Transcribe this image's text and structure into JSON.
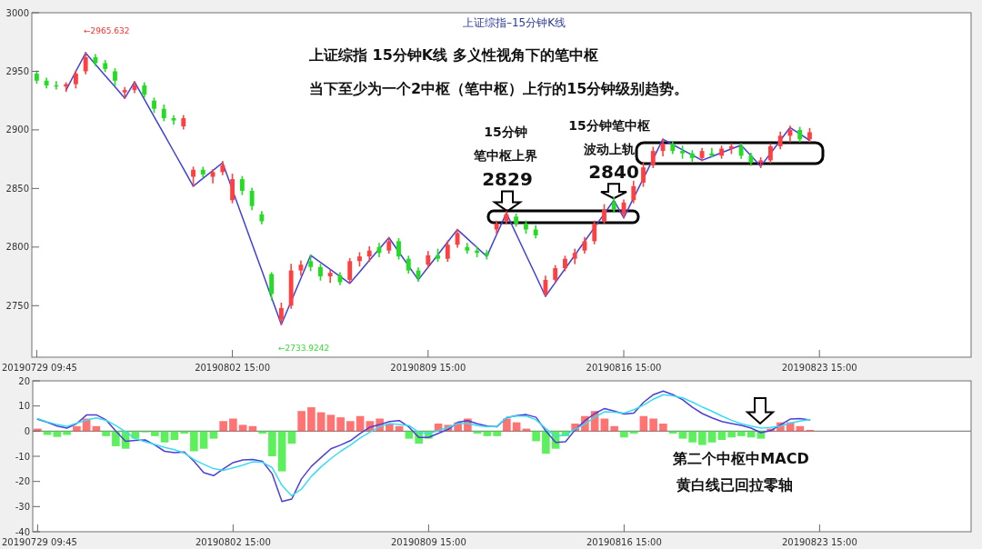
{
  "chart_data": [
    {
      "type": "candlestick",
      "title": "上证综指–15分钟K线",
      "categories": [
        "20190729 09:45",
        null,
        null,
        null,
        null,
        null,
        null,
        null,
        null,
        null,
        null,
        null,
        null,
        null,
        null,
        null,
        null,
        null,
        null,
        null,
        "20190802 15:00",
        null,
        null,
        null,
        null,
        null,
        null,
        null,
        null,
        null,
        null,
        null,
        null,
        null,
        null,
        null,
        null,
        null,
        null,
        null,
        "20190809 15:00",
        null,
        null,
        null,
        null,
        null,
        null,
        null,
        null,
        null,
        null,
        null,
        null,
        null,
        null,
        null,
        null,
        null,
        null,
        null,
        "20190816 15:00",
        null,
        null,
        null,
        null,
        null,
        null,
        null,
        null,
        null,
        null,
        null,
        null,
        null,
        null,
        null,
        null,
        null,
        null,
        null,
        "20190823 15:00",
        null,
        null,
        null,
        null,
        null,
        null,
        null,
        null,
        null,
        null,
        null,
        null,
        null,
        null,
        null
      ],
      "ylim": [
        2706,
        3000
      ],
      "yticks": [
        2750,
        2800,
        2850,
        2900,
        2950,
        3000
      ],
      "grid": false,
      "series": [
        {
          "type": "line",
          "color": "#4040d8",
          "values": [
            null,
            null,
            null,
            2934,
            2950,
            2965.632,
            2956,
            2946.3,
            2936.7,
            2927,
            2941,
            2926.2,
            2911.3,
            2896.5,
            2881.7,
            2866.8,
            2852,
            2858.7,
            2865.3,
            2872,
            null,
            2826,
            2803,
            2780,
            2757,
            2733.9242,
            null,
            2773.3,
            2793,
            2787,
            2781,
            2775,
            2769,
            2778.8,
            2788.5,
            2798.3,
            2808,
            2796,
            2784,
            2772,
            2782.8,
            2793.5,
            2804.3,
            2815,
            2807.3,
            2799.7,
            2792,
            2810.5,
            2829,
            2811.3,
            2793.5,
            2775.8,
            2758,
            2769.7,
            2781.4,
            2793.1,
            2804.9,
            2816.6,
            2828.3,
            2840,
            2825,
            2841.8,
            null,
            2875.3,
            2892,
            2887.5,
            2883,
            2878.5,
            2874,
            2877.3,
            2880.5,
            2883.8,
            2887,
            2878,
            2869,
            2880,
            2891,
            2902,
            2896.5,
            2891,
            null,
            null,
            null,
            null,
            null,
            null,
            null,
            null,
            null,
            null,
            null,
            null,
            null,
            null,
            null,
            null
          ]
        },
        {
          "color": "#ff4040",
          "ohlc": [
            null,
            null,
            null,
            [
              2937,
              2940,
              2933,
              2939
            ],
            [
              2939,
              2950,
              2936,
              2948
            ],
            [
              2950,
              2966,
              2948,
              2962
            ],
            null,
            null,
            null,
            [
              2932,
              2936,
              2927,
              2934
            ],
            [
              2934,
              2941,
              2932,
              2938
            ],
            null,
            null,
            null,
            null,
            [
              2903,
              2912,
              2901,
              2910
            ],
            [
              2860,
              2868,
              2852,
              2866
            ],
            null,
            [
              2860,
              2866,
              2855,
              2864
            ],
            [
              2864,
              2873,
              2862,
              2870
            ],
            [
              2840,
              2862,
              2838,
              2858
            ],
            null,
            null,
            null,
            null,
            [
              2738,
              2752,
              2734,
              2748
            ],
            [
              2750,
              2785,
              2748,
              2780
            ],
            [
              2780,
              2788,
              2776,
              2785
            ],
            null,
            null,
            [
              2775,
              2780,
              2770,
              2778
            ],
            null,
            [
              2772,
              2790,
              2770,
              2788
            ],
            [
              2788,
              2795,
              2784,
              2792
            ],
            [
              2792,
              2800,
              2788,
              2797
            ],
            null,
            [
              2797,
              2808,
              2795,
              2805
            ],
            null,
            null,
            null,
            [
              2785,
              2796,
              2783,
              2793
            ],
            null,
            [
              2790,
              2805,
              2788,
              2802
            ],
            [
              2802,
              2815,
              2800,
              2812
            ],
            null,
            null,
            null,
            [
              2815,
              2822,
              2812,
              2820
            ],
            [
              2822,
              2830,
              2820,
              2828
            ],
            null,
            null,
            null,
            [
              2760,
              2775,
              2758,
              2772
            ],
            [
              2772,
              2784,
              2770,
              2782
            ],
            [
              2782,
              2792,
              2780,
              2790
            ],
            [
              2790,
              2798,
              2786,
              2795
            ],
            [
              2797,
              2808,
              2795,
              2805
            ],
            [
              2805,
              2822,
              2803,
              2820
            ],
            [
              2822,
              2836,
              2820,
              2832
            ],
            null,
            [
              2828,
              2840,
              2825,
              2838
            ],
            [
              2840,
              2856,
              2838,
              2852
            ],
            [
              2855,
              2872,
              2852,
              2868
            ],
            [
              2870,
              2885,
              2868,
              2882
            ],
            [
              2882,
              2892,
              2878,
              2888
            ],
            null,
            null,
            null,
            [
              2876,
              2884,
              2874,
              2882
            ],
            null,
            [
              2878,
              2886,
              2876,
              2884
            ],
            [
              2884,
              2888,
              2880,
              2886
            ],
            null,
            null,
            [
              2872,
              2876,
              2868,
              2874
            ],
            [
              2874,
              2888,
              2872,
              2886
            ],
            [
              2886,
              2898,
              2884,
              2895
            ],
            [
              2895,
              2903,
              2890,
              2900
            ],
            null,
            [
              2892,
              2901,
              2890,
              2898
            ],
            null,
            null,
            null,
            null,
            null,
            null,
            null,
            null,
            null,
            null,
            null,
            null,
            null,
            null,
            null,
            null
          ]
        },
        {
          "color": "#22dd22",
          "ohlc": [
            [
              2948,
              2950,
              2940,
              2942
            ],
            [
              2942,
              2944,
              2936,
              2938
            ],
            [
              2938,
              2941,
              2935,
              2937
            ],
            null,
            null,
            null,
            [
              2962,
              2964,
              2955,
              2957
            ],
            [
              2957,
              2959,
              2950,
              2952
            ],
            [
              2950,
              2952,
              2938,
              2942
            ],
            null,
            null,
            [
              2938,
              2940,
              2928,
              2930
            ],
            [
              2925,
              2927,
              2915,
              2918
            ],
            [
              2918,
              2921,
              2908,
              2910
            ],
            [
              2910,
              2912,
              2905,
              2908
            ],
            null,
            null,
            [
              2866,
              2868,
              2860,
              2862
            ],
            null,
            null,
            null,
            [
              2858,
              2860,
              2845,
              2848
            ],
            [
              2848,
              2850,
              2832,
              2835
            ],
            [
              2828,
              2830,
              2820,
              2822
            ],
            [
              2777,
              2778,
              2755,
              2760
            ],
            null,
            null,
            null,
            [
              2788,
              2793,
              2780,
              2783
            ],
            [
              2783,
              2785,
              2772,
              2775
            ],
            null,
            [
              2776,
              2778,
              2768,
              2770
            ],
            null,
            null,
            null,
            [
              2800,
              2803,
              2792,
              2795
            ],
            null,
            [
              2805,
              2807,
              2790,
              2792
            ],
            [
              2790,
              2792,
              2778,
              2780
            ],
            [
              2780,
              2782,
              2771,
              2774
            ],
            null,
            [
              2793,
              2798,
              2788,
              2790
            ],
            null,
            null,
            [
              2800,
              2803,
              2795,
              2797
            ],
            [
              2797,
              2800,
              2792,
              2795
            ],
            [
              2795,
              2797,
              2790,
              2793
            ],
            null,
            null,
            [
              2826,
              2828,
              2818,
              2820
            ],
            [
              2820,
              2822,
              2812,
              2815
            ],
            [
              2815,
              2818,
              2808,
              2810
            ],
            null,
            null,
            null,
            null,
            null,
            null,
            null,
            [
              2838,
              2842,
              2830,
              2832
            ],
            null,
            null,
            null,
            null,
            null,
            [
              2888,
              2890,
              2880,
              2882
            ],
            [
              2882,
              2886,
              2876,
              2880
            ],
            [
              2880,
              2882,
              2873,
              2876
            ],
            null,
            [
              2880,
              2884,
              2877,
              2878
            ],
            null,
            null,
            [
              2886,
              2888,
              2876,
              2878
            ],
            [
              2878,
              2880,
              2870,
              2872
            ],
            null,
            null,
            null,
            null,
            [
              2900,
              2902,
              2890,
              2892
            ],
            null,
            null,
            null,
            null,
            null,
            null,
            null,
            null,
            null,
            null,
            null,
            null,
            null,
            null,
            null,
            null,
            null
          ]
        }
      ],
      "annotations": [
        "上证综指    15分钟K线     多义性视角下的笔中枢",
        "当下至少为一个2中枢（笔中枢）上行的15分钟级别趋势。",
        "15分钟",
        "笔中枢上界",
        {
          "text": "2829",
          "y": 2829
        },
        "15分钟笔中枢",
        "波动上轨",
        {
          "text": "2840",
          "y": 2840
        },
        "←2965.632",
        "←2733.9242"
      ]
    },
    {
      "type": "bar",
      "categories": [
        "20190729 09:45",
        null,
        null,
        null,
        null,
        null,
        null,
        null,
        null,
        null,
        null,
        null,
        null,
        null,
        null,
        null,
        null,
        null,
        null,
        null,
        "20190802 15:00",
        null,
        null,
        null,
        null,
        null,
        null,
        null,
        null,
        null,
        null,
        null,
        null,
        null,
        null,
        null,
        null,
        null,
        null,
        null,
        "20190809 15:00",
        null,
        null,
        null,
        null,
        null,
        null,
        null,
        null,
        null,
        null,
        null,
        null,
        null,
        null,
        null,
        null,
        null,
        null,
        null,
        "20190816 15:00",
        null,
        null,
        null,
        null,
        null,
        null,
        null,
        null,
        null,
        null,
        null,
        null,
        null,
        null,
        null,
        null,
        null,
        null,
        null,
        "20190823 15:00",
        null,
        null,
        null,
        null,
        null,
        null,
        null,
        null,
        null,
        null,
        null,
        null,
        null,
        null,
        null
      ],
      "ylim": [
        -40,
        20
      ],
      "yticks": [
        -40,
        -30,
        -20,
        -10,
        0,
        10,
        20
      ],
      "grid": false,
      "ref_lines": [
        {
          "axis": "y",
          "value": 0,
          "color": "#888888"
        }
      ],
      "series": [
        {
          "color": "#ff5050",
          "values": [
            1,
            null,
            null,
            null,
            2,
            5,
            2,
            null,
            null,
            null,
            null,
            null,
            null,
            null,
            null,
            null,
            null,
            null,
            null,
            4,
            5,
            2.5,
            2,
            null,
            null,
            null,
            null,
            8,
            9.5,
            7.5,
            6.5,
            5.5,
            4,
            6,
            4,
            5,
            3,
            2,
            null,
            null,
            null,
            3,
            2.5,
            3.5,
            5,
            null,
            null,
            null,
            5,
            3.5,
            1,
            null,
            null,
            null,
            null,
            3,
            6,
            8,
            5,
            2,
            null,
            null,
            6,
            5,
            3,
            null,
            null,
            null,
            null,
            null,
            null,
            null,
            null,
            null,
            null,
            1,
            3.5,
            3.5,
            2,
            0.5,
            null,
            null,
            null,
            null,
            null,
            null,
            null,
            null,
            null,
            null,
            null,
            null,
            null,
            null,
            null,
            null
          ]
        },
        {
          "color": "#33ee33",
          "values": [
            null,
            -1.5,
            -2.3,
            -1.5,
            null,
            null,
            null,
            -2,
            -6,
            -7,
            -3,
            -0.5,
            -2,
            -4.5,
            -3.5,
            -1,
            -8,
            -7,
            -3,
            null,
            null,
            null,
            null,
            -1,
            -10,
            -16,
            -5,
            null,
            null,
            null,
            null,
            null,
            null,
            null,
            null,
            null,
            null,
            null,
            -3,
            -5,
            -3,
            null,
            null,
            null,
            null,
            -1,
            -2,
            -2,
            null,
            null,
            null,
            -4,
            -9,
            -7,
            -2,
            null,
            null,
            null,
            null,
            null,
            -2.5,
            -1,
            null,
            null,
            null,
            -1,
            -3,
            -4.5,
            -5.5,
            -4.5,
            -3.5,
            -2.5,
            -2,
            -2.5,
            -3,
            null,
            null,
            null,
            null,
            null,
            null,
            null,
            null,
            null,
            null,
            null,
            null,
            null,
            null,
            null,
            null,
            null,
            null,
            null,
            null,
            null
          ]
        },
        {
          "type": "line",
          "color": "#4b3fd6",
          "values": [
            4.7,
            3.5,
            2,
            1.2,
            3,
            6.4,
            6.5,
            4.5,
            0,
            -4,
            -3.7,
            -3.5,
            -5.5,
            -8,
            -8.5,
            -8.3,
            -12,
            -16.5,
            -17.7,
            -15,
            -12.5,
            -11.5,
            -11.3,
            -12,
            -17,
            -28,
            -27,
            -19,
            -14,
            -10.5,
            -7,
            -5.5,
            -3.8,
            -0.9,
            1.6,
            2.6,
            3.8,
            4.2,
            1.6,
            -2.5,
            -2.5,
            -0.9,
            0.7,
            3.5,
            4.2,
            2.9,
            2,
            1.8,
            5.4,
            6.2,
            6.6,
            5.5,
            0,
            -4.5,
            -4.2,
            0.5,
            4.2,
            7,
            9,
            8,
            6.8,
            7.2,
            11.5,
            14.5,
            15.9,
            14.5,
            12.5,
            9.5,
            7,
            5.3,
            3.8,
            3,
            2.3,
            1.2,
            -0.6,
            0.2,
            2.5,
            4.8,
            5,
            4.5,
            null,
            null,
            null,
            null,
            null,
            null,
            null,
            null,
            null,
            null,
            null,
            null,
            null,
            null,
            null,
            null
          ]
        },
        {
          "type": "line",
          "color": "#38dcf2",
          "values": [
            5,
            3.7,
            2.6,
            1.9,
            3.2,
            4.4,
            5.3,
            4.3,
            2.2,
            -0.3,
            -3,
            -4.2,
            -5.3,
            -6.5,
            -7.4,
            -8.7,
            -11.3,
            -13.2,
            -14.9,
            -15.6,
            -14.6,
            -13.5,
            -12.2,
            -12.4,
            -14.5,
            -21.6,
            -25.7,
            -23,
            -18,
            -14.2,
            -10.9,
            -8,
            -5.5,
            -2.7,
            -0.4,
            1.8,
            3,
            2.7,
            2.2,
            -0.5,
            -1,
            0.2,
            1.5,
            3,
            3,
            2.2,
            1.8,
            1.9,
            5.5,
            6,
            6,
            4.5,
            1,
            -2,
            -1.5,
            0.8,
            2.8,
            5.5,
            7.7,
            7.5,
            7.2,
            8.5,
            10.4,
            12.7,
            14.5,
            14,
            13.2,
            11.5,
            9.6,
            7.9,
            6,
            4.3,
            2.9,
            2,
            1.2,
            1.5,
            2,
            3.2,
            4,
            4.6,
            null,
            null,
            null,
            null,
            null,
            null,
            null,
            null,
            null,
            null,
            null,
            null,
            null,
            null,
            null,
            null
          ]
        }
      ],
      "annotations": [
        "第二个中枢中MACD",
        "黄白线已回拉零轴"
      ]
    }
  ]
}
